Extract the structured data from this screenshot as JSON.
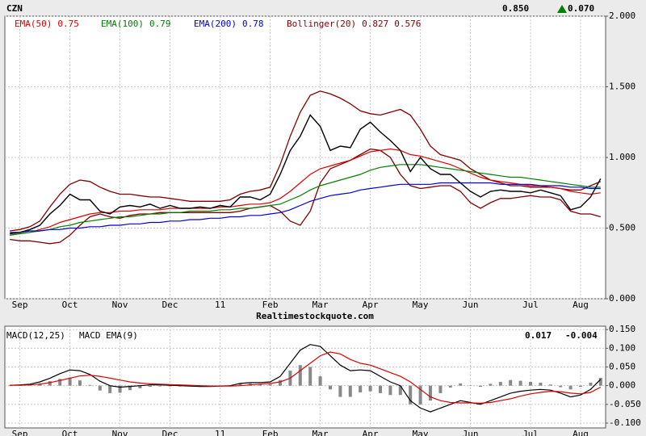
{
  "chart_data": [
    {
      "type": "line",
      "symbol": "CZN",
      "last_price": {
        "value": 0.85,
        "label": "0.850"
      },
      "change": {
        "value": 0.07,
        "label": "0.070"
      },
      "source": "Realtimestockquote.com",
      "categories": [
        null,
        "Sep",
        null,
        null,
        null,
        null,
        "Oct",
        null,
        null,
        null,
        null,
        "Nov",
        null,
        null,
        null,
        null,
        "Dec",
        null,
        null,
        null,
        null,
        "11",
        null,
        null,
        null,
        null,
        "Feb",
        null,
        null,
        null,
        null,
        "Mar",
        null,
        null,
        null,
        null,
        "Apr",
        null,
        null,
        null,
        null,
        "May",
        null,
        null,
        null,
        null,
        "Jun",
        null,
        null,
        null,
        null,
        null,
        "Jul",
        null,
        null,
        null,
        null,
        "Aug",
        null,
        null
      ],
      "values": [
        0.46,
        0.47,
        0.49,
        0.52,
        0.6,
        0.66,
        0.74,
        0.7,
        0.7,
        0.62,
        0.6,
        0.65,
        0.66,
        0.65,
        0.67,
        0.64,
        0.66,
        0.64,
        0.64,
        0.65,
        0.64,
        0.66,
        0.65,
        0.72,
        0.72,
        0.7,
        0.74,
        0.88,
        1.05,
        1.15,
        1.3,
        1.22,
        1.05,
        1.08,
        1.07,
        1.2,
        1.25,
        1.18,
        1.12,
        1.05,
        0.9,
        1.0,
        0.92,
        0.88,
        0.88,
        0.82,
        0.76,
        0.72,
        0.76,
        0.77,
        0.76,
        0.76,
        0.75,
        0.77,
        0.75,
        0.73,
        0.63,
        0.65,
        0.72,
        0.85
      ],
      "color": "#000000",
      "series": [
        {
          "name": "EMA(50)",
          "color": "#dd0000",
          "last": 0.75,
          "values": [
            0.45,
            0.46,
            0.47,
            0.49,
            0.51,
            0.54,
            0.56,
            0.58,
            0.6,
            0.61,
            0.61,
            0.62,
            0.62,
            0.63,
            0.63,
            0.63,
            0.64,
            0.64,
            0.64,
            0.64,
            0.64,
            0.65,
            0.65,
            0.66,
            0.67,
            0.67,
            0.68,
            0.71,
            0.76,
            0.82,
            0.88,
            0.92,
            0.94,
            0.96,
            0.98,
            1.01,
            1.04,
            1.05,
            1.06,
            1.05,
            1.02,
            1.01,
            0.99,
            0.97,
            0.95,
            0.92,
            0.89,
            0.86,
            0.84,
            0.83,
            0.82,
            0.81,
            0.8,
            0.8,
            0.79,
            0.78,
            0.76,
            0.75,
            0.74,
            0.75
          ]
        },
        {
          "name": "EMA(100)",
          "color": "#008000",
          "last": 0.79,
          "values": [
            0.45,
            0.46,
            0.47,
            0.48,
            0.49,
            0.51,
            0.52,
            0.54,
            0.55,
            0.56,
            0.57,
            0.58,
            0.58,
            0.59,
            0.6,
            0.6,
            0.61,
            0.61,
            0.62,
            0.62,
            0.62,
            0.63,
            0.63,
            0.64,
            0.64,
            0.65,
            0.66,
            0.67,
            0.7,
            0.73,
            0.77,
            0.8,
            0.82,
            0.84,
            0.86,
            0.88,
            0.91,
            0.93,
            0.94,
            0.95,
            0.95,
            0.95,
            0.94,
            0.93,
            0.92,
            0.91,
            0.9,
            0.89,
            0.88,
            0.87,
            0.86,
            0.86,
            0.85,
            0.84,
            0.83,
            0.82,
            0.81,
            0.8,
            0.79,
            0.79
          ]
        },
        {
          "name": "EMA(200)",
          "color": "#0000cc",
          "last": 0.78,
          "values": [
            0.47,
            0.47,
            0.48,
            0.48,
            0.49,
            0.49,
            0.5,
            0.5,
            0.51,
            0.51,
            0.52,
            0.52,
            0.53,
            0.53,
            0.54,
            0.54,
            0.55,
            0.55,
            0.56,
            0.56,
            0.57,
            0.57,
            0.58,
            0.58,
            0.59,
            0.59,
            0.6,
            0.61,
            0.63,
            0.66,
            0.69,
            0.71,
            0.73,
            0.74,
            0.75,
            0.77,
            0.78,
            0.79,
            0.8,
            0.81,
            0.81,
            0.81,
            0.81,
            0.82,
            0.82,
            0.82,
            0.82,
            0.82,
            0.82,
            0.81,
            0.81,
            0.81,
            0.81,
            0.8,
            0.8,
            0.8,
            0.79,
            0.79,
            0.78,
            0.78
          ]
        }
      ],
      "bollinger": {
        "name": "Bollinger(20)",
        "color": "#800000",
        "last": [
          0.827,
          0.576
        ],
        "upper": [
          0.48,
          0.49,
          0.51,
          0.55,
          0.65,
          0.74,
          0.81,
          0.84,
          0.83,
          0.79,
          0.76,
          0.74,
          0.74,
          0.73,
          0.72,
          0.72,
          0.71,
          0.7,
          0.69,
          0.69,
          0.69,
          0.69,
          0.7,
          0.74,
          0.76,
          0.77,
          0.79,
          0.95,
          1.15,
          1.32,
          1.44,
          1.47,
          1.45,
          1.42,
          1.38,
          1.33,
          1.31,
          1.3,
          1.32,
          1.34,
          1.3,
          1.2,
          1.08,
          1.02,
          1.0,
          0.98,
          0.92,
          0.88,
          0.84,
          0.82,
          0.8,
          0.8,
          0.79,
          0.79,
          0.79,
          0.78,
          0.77,
          0.77,
          0.8,
          0.83
        ],
        "lower": [
          0.42,
          0.41,
          0.41,
          0.4,
          0.39,
          0.4,
          0.45,
          0.52,
          0.58,
          0.6,
          0.58,
          0.57,
          0.59,
          0.6,
          0.6,
          0.61,
          0.61,
          0.61,
          0.61,
          0.61,
          0.61,
          0.61,
          0.61,
          0.62,
          0.64,
          0.65,
          0.66,
          0.62,
          0.55,
          0.52,
          0.62,
          0.82,
          0.92,
          0.95,
          0.98,
          1.02,
          1.06,
          1.05,
          1.0,
          0.88,
          0.8,
          0.78,
          0.79,
          0.8,
          0.8,
          0.76,
          0.68,
          0.64,
          0.68,
          0.71,
          0.71,
          0.72,
          0.73,
          0.72,
          0.72,
          0.7,
          0.62,
          0.6,
          0.6,
          0.58
        ]
      },
      "ylim": [
        0,
        2
      ],
      "yticks": [
        {
          "value": 0,
          "label": "0.000"
        },
        {
          "value": 0.5,
          "label": "0.500"
        },
        {
          "value": 1,
          "label": "1.000"
        },
        {
          "value": 1.5,
          "label": "1.500"
        },
        {
          "value": 2,
          "label": "2.000"
        }
      ],
      "grid": true
    },
    {
      "type": "line",
      "categories": [
        null,
        "Sep",
        null,
        null,
        null,
        null,
        "Oct",
        null,
        null,
        null,
        null,
        "Nov",
        null,
        null,
        null,
        null,
        "Dec",
        null,
        null,
        null,
        null,
        "11",
        null,
        null,
        null,
        null,
        "Feb",
        null,
        null,
        null,
        null,
        "Mar",
        null,
        null,
        null,
        null,
        "Apr",
        null,
        null,
        null,
        null,
        "May",
        null,
        null,
        null,
        null,
        "Jun",
        null,
        null,
        null,
        null,
        null,
        "Jul",
        null,
        null,
        null,
        null,
        "Aug",
        null,
        null
      ],
      "series": [
        {
          "name": "MACD(12,25)",
          "color": "#000000",
          "last": 0.017,
          "values": [
            0.001,
            0.002,
            0.004,
            0.01,
            0.02,
            0.032,
            0.042,
            0.04,
            0.03,
            0.012,
            0.0,
            -0.004,
            -0.002,
            0.0,
            0.002,
            0.002,
            0.001,
            0.0,
            -0.001,
            -0.002,
            -0.002,
            -0.001,
            0.0,
            0.006,
            0.008,
            0.008,
            0.01,
            0.025,
            0.06,
            0.095,
            0.11,
            0.105,
            0.08,
            0.055,
            0.04,
            0.042,
            0.04,
            0.025,
            0.01,
            0.0,
            -0.04,
            -0.06,
            -0.07,
            -0.06,
            -0.05,
            -0.04,
            -0.045,
            -0.05,
            -0.04,
            -0.03,
            -0.02,
            -0.015,
            -0.012,
            -0.01,
            -0.012,
            -0.02,
            -0.03,
            -0.025,
            -0.01,
            0.017
          ]
        },
        {
          "name": "MACD EMA(9)",
          "color": "#dd0000",
          "last": -0.004,
          "values": [
            0.001,
            0.001,
            0.002,
            0.004,
            0.008,
            0.014,
            0.02,
            0.026,
            0.028,
            0.025,
            0.02,
            0.015,
            0.01,
            0.007,
            0.005,
            0.004,
            0.003,
            0.002,
            0.001,
            0.0,
            -0.001,
            -0.001,
            -0.001,
            0.0,
            0.002,
            0.004,
            0.006,
            0.01,
            0.02,
            0.04,
            0.06,
            0.08,
            0.09,
            0.085,
            0.07,
            0.06,
            0.055,
            0.045,
            0.035,
            0.025,
            0.01,
            -0.01,
            -0.03,
            -0.04,
            -0.045,
            -0.046,
            -0.046,
            -0.047,
            -0.045,
            -0.04,
            -0.035,
            -0.028,
            -0.022,
            -0.018,
            -0.015,
            -0.016,
            -0.02,
            -0.022,
            -0.018,
            -0.004
          ]
        }
      ],
      "histogram": {
        "color": "#888888",
        "values": [
          0,
          0.001,
          0.002,
          0.006,
          0.012,
          0.018,
          0.022,
          0.014,
          0.002,
          -0.013,
          -0.02,
          -0.019,
          -0.012,
          -0.007,
          -0.003,
          -0.002,
          -0.002,
          -0.002,
          -0.002,
          -0.002,
          -0.001,
          0,
          0.001,
          0.006,
          0.006,
          0.004,
          0.004,
          0.015,
          0.04,
          0.055,
          0.05,
          0.025,
          -0.01,
          -0.03,
          -0.03,
          -0.018,
          -0.015,
          -0.02,
          -0.025,
          -0.025,
          -0.05,
          -0.05,
          -0.04,
          -0.02,
          -0.005,
          0.006,
          0.001,
          -0.003,
          0.005,
          0.01,
          0.015,
          0.013,
          0.01,
          0.008,
          0.003,
          -0.004,
          -0.01,
          -0.003,
          0.008,
          0.021
        ]
      },
      "ylim": [
        -0.113,
        0.159
      ],
      "yticks": [
        {
          "value": -0.1,
          "label": "-0.100"
        },
        {
          "value": -0.05,
          "label": "-0.050"
        },
        {
          "value": 0,
          "label": "0.000"
        },
        {
          "value": 0.05,
          "label": "0.050"
        },
        {
          "value": 0.1,
          "label": "0.100"
        },
        {
          "value": 0.15,
          "label": "0.150"
        }
      ],
      "grid": true
    }
  ]
}
